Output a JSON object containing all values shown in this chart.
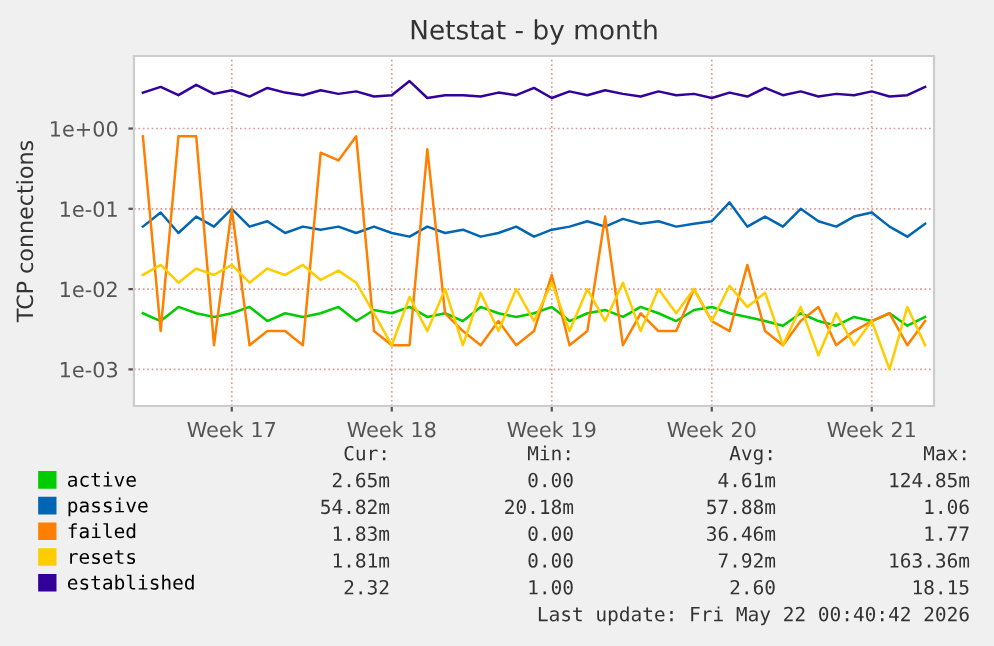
{
  "chart_data": {
    "type": "line",
    "title": "Netstat - by month",
    "ylabel": "TCP connections",
    "categories": [
      null,
      null,
      null,
      null,
      null,
      "Week 17",
      null,
      null,
      null,
      null,
      null,
      null,
      null,
      null,
      "Week 18",
      null,
      null,
      null,
      null,
      null,
      null,
      null,
      null,
      "Week 19",
      null,
      null,
      null,
      null,
      null,
      null,
      null,
      null,
      "Week 20",
      null,
      null,
      null,
      null,
      null,
      null,
      null,
      null,
      "Week 21",
      null,
      null,
      null
    ],
    "series": [
      {
        "name": "active",
        "color": "#00cc00",
        "values": [
          0.005,
          0.004,
          0.006,
          0.005,
          0.0045,
          0.005,
          0.006,
          0.004,
          0.005,
          0.0045,
          0.005,
          0.006,
          0.004,
          0.0055,
          0.005,
          0.006,
          0.0045,
          0.005,
          0.004,
          0.006,
          0.005,
          0.0045,
          0.005,
          0.006,
          0.004,
          0.005,
          0.0055,
          0.0045,
          0.006,
          0.005,
          0.004,
          0.0055,
          0.006,
          0.005,
          0.0045,
          0.004,
          0.0035,
          0.005,
          0.004,
          0.0035,
          0.0045,
          0.004,
          0.005,
          0.0035,
          0.0045
        ]
      },
      {
        "name": "passive",
        "color": "#0066b3",
        "values": [
          0.06,
          0.09,
          0.05,
          0.08,
          0.06,
          0.1,
          0.06,
          0.07,
          0.05,
          0.06,
          0.055,
          0.06,
          0.05,
          0.06,
          0.05,
          0.045,
          0.06,
          0.05,
          0.055,
          0.045,
          0.05,
          0.06,
          0.045,
          0.055,
          0.06,
          0.07,
          0.06,
          0.075,
          0.065,
          0.07,
          0.06,
          0.065,
          0.07,
          0.12,
          0.06,
          0.08,
          0.06,
          0.1,
          0.07,
          0.06,
          0.08,
          0.09,
          0.06,
          0.045,
          0.065
        ]
      },
      {
        "name": "failed",
        "color": "#ff8000",
        "values": [
          0.8,
          0.003,
          0.8,
          0.8,
          0.002,
          0.1,
          0.002,
          0.003,
          0.003,
          0.002,
          0.5,
          0.4,
          0.8,
          0.003,
          0.002,
          0.002,
          0.55,
          0.005,
          0.003,
          0.002,
          0.004,
          0.002,
          0.003,
          0.015,
          0.002,
          0.003,
          0.08,
          0.002,
          0.005,
          0.003,
          0.003,
          0.01,
          0.004,
          0.003,
          0.02,
          0.003,
          0.002,
          0.004,
          0.006,
          0.002,
          0.003,
          0.004,
          0.005,
          0.002,
          0.004
        ]
      },
      {
        "name": "resets",
        "color": "#ffcc00",
        "values": [
          0.015,
          0.02,
          0.012,
          0.018,
          0.015,
          0.02,
          0.012,
          0.018,
          0.015,
          0.02,
          0.013,
          0.017,
          0.012,
          0.005,
          0.002,
          0.008,
          0.003,
          0.01,
          0.002,
          0.009,
          0.003,
          0.01,
          0.004,
          0.012,
          0.003,
          0.01,
          0.004,
          0.012,
          0.003,
          0.01,
          0.005,
          0.01,
          0.004,
          0.011,
          0.006,
          0.009,
          0.002,
          0.006,
          0.0015,
          0.005,
          0.002,
          0.004,
          0.001,
          0.006,
          0.002
        ]
      },
      {
        "name": "established",
        "color": "#330099",
        "values": [
          2.8,
          3.3,
          2.6,
          3.5,
          2.7,
          3.0,
          2.5,
          3.2,
          2.8,
          2.6,
          3.0,
          2.7,
          2.9,
          2.5,
          2.6,
          3.9,
          2.4,
          2.6,
          2.6,
          2.5,
          2.8,
          2.6,
          3.2,
          2.4,
          2.9,
          2.6,
          3.0,
          2.7,
          2.5,
          2.9,
          2.6,
          2.7,
          2.4,
          2.8,
          2.5,
          3.2,
          2.6,
          2.9,
          2.5,
          2.7,
          2.6,
          2.9,
          2.5,
          2.6,
          3.3
        ]
      }
    ],
    "log": "y",
    "ylim": [
      0.00035,
      8
    ],
    "yticks": [
      {
        "value": 0.001,
        "label": "1e-03"
      },
      {
        "value": 0.01,
        "label": "1e-02"
      },
      {
        "value": 0.1,
        "label": "1e-01"
      },
      {
        "value": 1,
        "label": "1e+00"
      }
    ],
    "grid": true,
    "legend": "bottom",
    "marker": "none",
    "line_style": "solid",
    "annotations": [
      "Cur:",
      "Min:",
      "Avg:",
      "Max:",
      "2.65m",
      "0.00",
      "4.61m",
      "124.85m",
      "54.82m",
      "20.18m",
      "57.88m",
      "1.06",
      "1.83m",
      "0.00",
      "36.46m",
      "1.77",
      "1.81m",
      "0.00",
      "7.92m",
      "163.36m",
      "2.32",
      "1.00",
      "2.60",
      "18.15",
      "Last update: Fri May 22 00:40:42 2026"
    ]
  }
}
